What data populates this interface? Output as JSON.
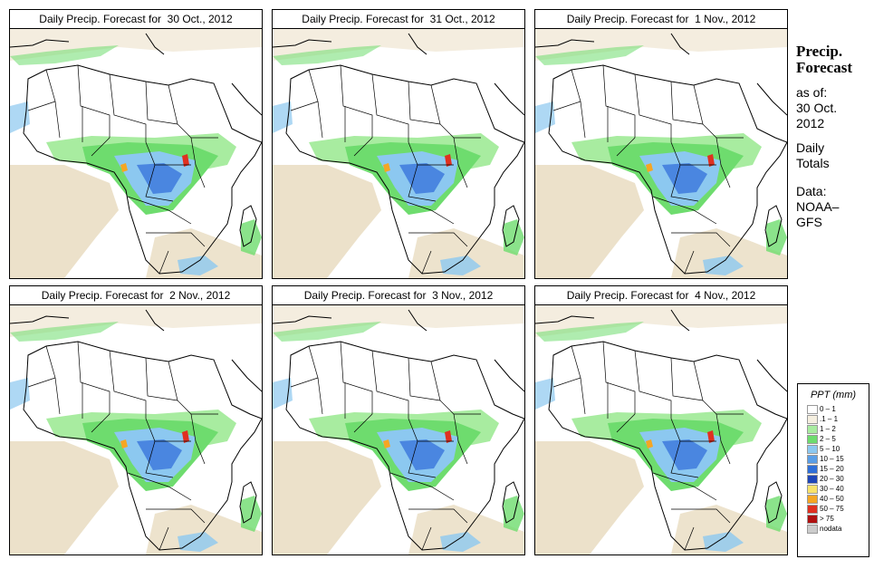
{
  "panels": [
    {
      "title": "Daily Precip. Forecast for  30 Oct., 2012"
    },
    {
      "title": "Daily Precip. Forecast for  31 Oct., 2012"
    },
    {
      "title": "Daily Precip. Forecast for  1 Nov., 2012"
    },
    {
      "title": "Daily Precip. Forecast for  2 Nov., 2012"
    },
    {
      "title": "Daily Precip. Forecast for  3 Nov., 2012"
    },
    {
      "title": "Daily Precip. Forecast for  4 Nov., 2012"
    }
  ],
  "sidebar": {
    "title_line1": "Precip.",
    "title_line2": "Forecast",
    "asof_label": "as of:",
    "asof_date_line1": "30 Oct.",
    "asof_date_line2": "2012",
    "totals_line1": "Daily",
    "totals_line2": "Totals",
    "data_label": "Data:",
    "data_source_line1": "NOAA–",
    "data_source_line2": "GFS"
  },
  "legend": {
    "title": "PPT (mm)",
    "items": [
      {
        "label": "0 – 1",
        "color": "#ffffff"
      },
      {
        "label": ".1 – 1",
        "color": "#f5efe0"
      },
      {
        "label": "1 – 2",
        "color": "#a8eca0"
      },
      {
        "label": "2 – 5",
        "color": "#6edc6e"
      },
      {
        "label": "5 – 10",
        "color": "#8cc8f0"
      },
      {
        "label": "10 – 15",
        "color": "#5a9ee6"
      },
      {
        "label": "15 – 20",
        "color": "#2f6fd8"
      },
      {
        "label": "20 – 30",
        "color": "#1e46b8"
      },
      {
        "label": "30 – 40",
        "color": "#f8e26a"
      },
      {
        "label": "40 – 50",
        "color": "#f5a623"
      },
      {
        "label": "50 – 75",
        "color": "#e03020"
      },
      {
        "label": "> 75",
        "color": "#b01010"
      },
      {
        "label": "nodata",
        "color": "#cccccc"
      }
    ]
  },
  "colors": {
    "desert": "#e6d7b8",
    "light_green": "#a8eca0",
    "green": "#6edc6e",
    "light_blue": "#8cc8f0",
    "blue": "#4a86e0",
    "red": "#e03020",
    "orange": "#f5a623"
  }
}
